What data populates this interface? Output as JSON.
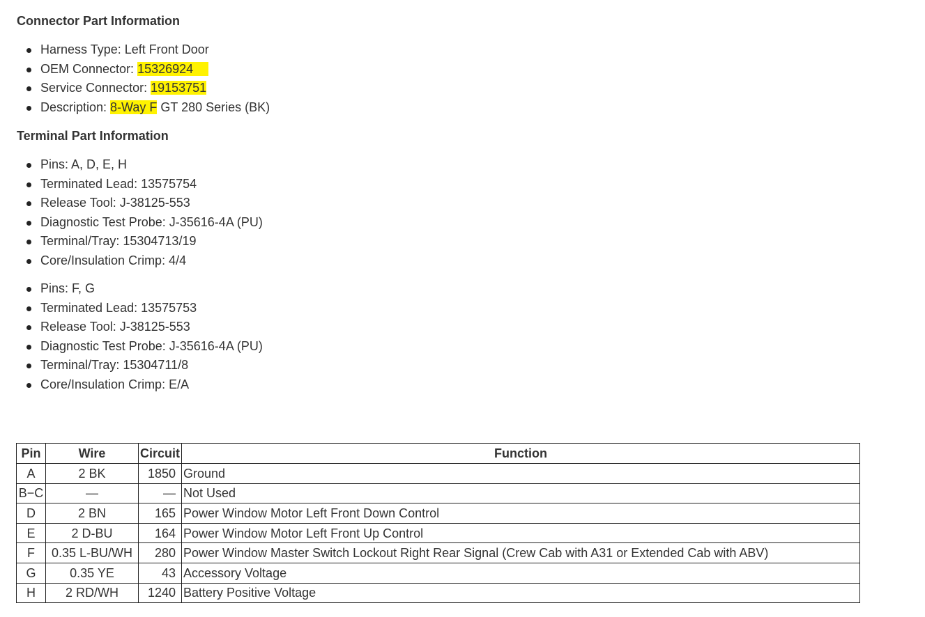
{
  "connector": {
    "heading": "Connector Part Information",
    "harness": "Harness Type: Left Front Door",
    "oem_label": "OEM Connector: ",
    "oem_value": "15326924",
    "service_label": "Service Connector: ",
    "service_value": "19153751",
    "desc_label": "Description: ",
    "desc_highlight": "8-Way F",
    "desc_rest": " GT 280 Series (BK)"
  },
  "terminal": {
    "heading": "Terminal Part Information",
    "groups": [
      [
        "Pins: A, D, E, H",
        "Terminated Lead: 13575754",
        "Release Tool: J-38125-553",
        "Diagnostic Test Probe: J-35616-4A (PU)",
        "Terminal/Tray: 15304713/19",
        "Core/Insulation Crimp: 4/4"
      ],
      [
        "Pins: F, G",
        "Terminated Lead: 13575753",
        "Release Tool: J-38125-553",
        "Diagnostic Test Probe: J-35616-4A (PU)",
        "Terminal/Tray: 15304711/8",
        "Core/Insulation Crimp: E/A"
      ]
    ]
  },
  "highlight_color": "#fff200",
  "table": {
    "headers": [
      "Pin",
      "Wire",
      "Circuit",
      "Function"
    ],
    "rows": [
      [
        "A",
        "2 BK",
        "1850",
        "Ground"
      ],
      [
        "B−C",
        "—",
        "—",
        "Not Used"
      ],
      [
        "D",
        "2 BN",
        "165",
        "Power Window Motor Left Front Down Control"
      ],
      [
        "E",
        "2 D-BU",
        "164",
        "Power Window Motor Left Front Up Control"
      ],
      [
        "F",
        "0.35 L-BU/WH",
        "280",
        "Power Window Master Switch Lockout Right Rear Signal (Crew Cab with A31 or Extended Cab with ABV)"
      ],
      [
        "G",
        "0.35 YE",
        "43",
        "Accessory Voltage"
      ],
      [
        "H",
        "2 RD/WH",
        "1240",
        "Battery Positive Voltage"
      ]
    ]
  }
}
